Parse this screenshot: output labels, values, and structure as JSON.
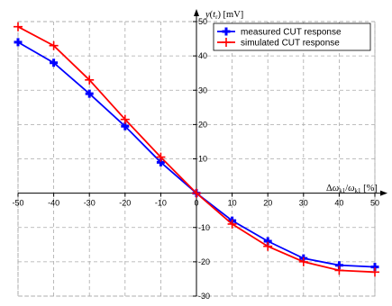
{
  "chart_data": {
    "type": "line",
    "title": "",
    "xlabel": "Δω_k1/ω_k1 [%]",
    "ylabel": "y(t_r) [mV]",
    "xlim": [
      -50,
      50
    ],
    "ylim": [
      -30,
      50
    ],
    "x_ticks": [
      -50,
      -40,
      -30,
      -20,
      -10,
      0,
      10,
      20,
      30,
      40,
      50
    ],
    "y_ticks": [
      -30,
      -20,
      -10,
      0,
      10,
      20,
      30,
      40,
      50
    ],
    "grid": true,
    "grid_style": "dashed",
    "axes_style": "centered arrows",
    "legend_position": "top-right",
    "x": [
      -50,
      -40,
      -30,
      -20,
      -10,
      0,
      10,
      20,
      30,
      40,
      50
    ],
    "series": [
      {
        "name": "measured CUT response",
        "color": "#0000ff",
        "marker": "filled-plus",
        "values": [
          44,
          38,
          29,
          19.5,
          9,
          0,
          -8,
          -14,
          -19,
          -21,
          -21.5
        ]
      },
      {
        "name": "simulated CUT response",
        "color": "#ff0000",
        "marker": "plus",
        "values": [
          48.5,
          43,
          33,
          21.5,
          10.5,
          0,
          -9,
          -15.5,
          -20,
          -22.5,
          -23
        ]
      }
    ]
  }
}
